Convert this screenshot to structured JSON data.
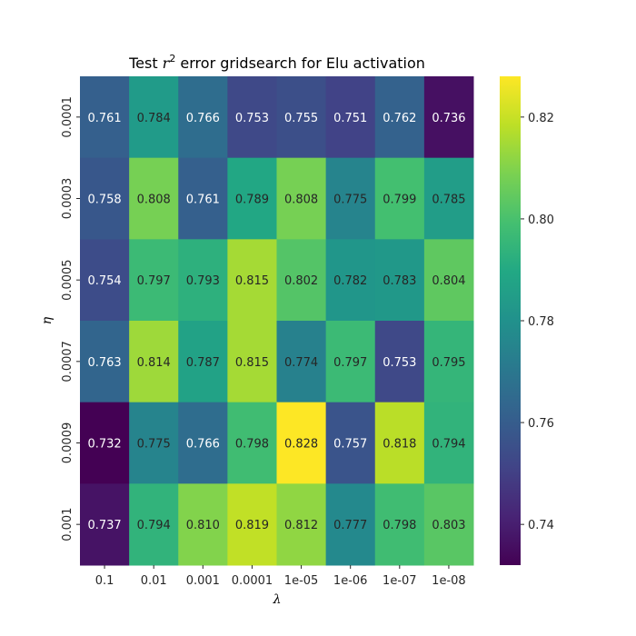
{
  "chart_data": {
    "type": "heatmap",
    "title_prefix": "Test ",
    "title_symbol": "r",
    "title_sup": "2",
    "title_suffix": " error gridsearch for Elu activation",
    "xlabel": "λ",
    "ylabel": "η",
    "x_categories": [
      "0.1",
      "0.01",
      "0.001",
      "0.0001",
      "1e-05",
      "1e-06",
      "1e-07",
      "1e-08"
    ],
    "y_categories": [
      "0.0001",
      "0.0003",
      "0.0005",
      "0.0007",
      "0.0009",
      "0.001"
    ],
    "values": [
      [
        0.761,
        0.784,
        0.766,
        0.753,
        0.755,
        0.751,
        0.762,
        0.736
      ],
      [
        0.758,
        0.808,
        0.761,
        0.789,
        0.808,
        0.775,
        0.799,
        0.785
      ],
      [
        0.754,
        0.797,
        0.793,
        0.815,
        0.802,
        0.782,
        0.783,
        0.804
      ],
      [
        0.763,
        0.814,
        0.787,
        0.815,
        0.774,
        0.797,
        0.753,
        0.795
      ],
      [
        0.732,
        0.775,
        0.766,
        0.798,
        0.828,
        0.757,
        0.818,
        0.794
      ],
      [
        0.737,
        0.794,
        0.81,
        0.819,
        0.812,
        0.777,
        0.798,
        0.803
      ]
    ],
    "colormap": "viridis",
    "vmin": 0.732,
    "vmax": 0.828,
    "colorbar_ticks": [
      "0.74",
      "0.76",
      "0.78",
      "0.80",
      "0.82"
    ]
  }
}
